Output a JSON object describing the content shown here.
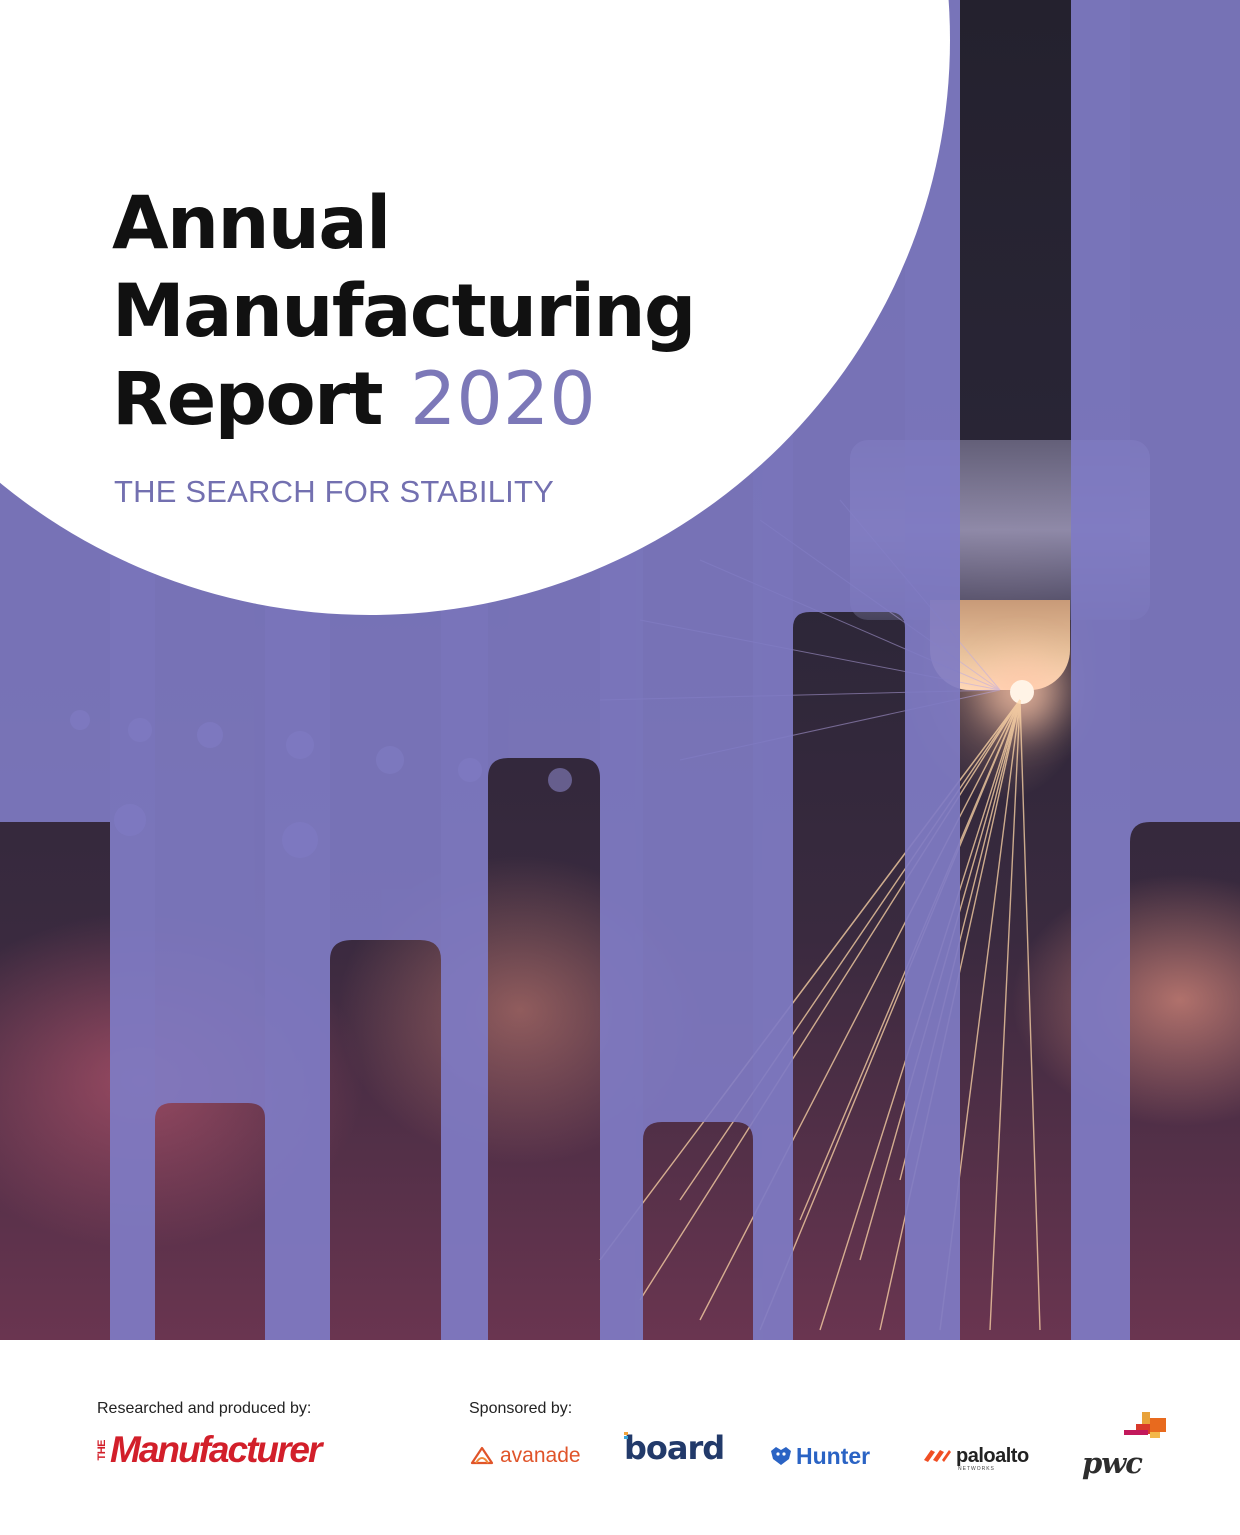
{
  "cover": {
    "title_line1": "Annual",
    "title_line2": "Manufacturing",
    "title_line3": "Report",
    "title_year": "2020",
    "subtitle": "THE SEARCH FOR STABILITY",
    "accent_color": "#7c78b8",
    "stripe_color": "#7f7bc4"
  },
  "footer": {
    "produced_label": "Researched and produced by:",
    "publisher_prefix": "THE",
    "publisher_name": "Manufacturer",
    "sponsor_label": "Sponsored by:",
    "sponsors": [
      {
        "name": "avanade",
        "icon": "avanade-logo-icon"
      },
      {
        "name": "board",
        "icon": "board-logo-icon"
      },
      {
        "name": "Hunter",
        "icon": "hunter-logo-icon"
      },
      {
        "name": "paloalto",
        "suffix": "NETWORKS",
        "icon": "paloalto-logo-icon"
      },
      {
        "name": "pwc",
        "icon": "pwc-logo-icon"
      }
    ]
  }
}
